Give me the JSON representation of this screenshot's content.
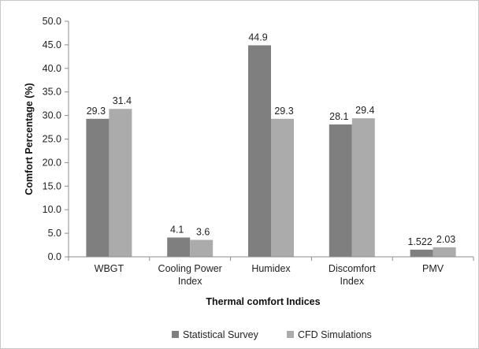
{
  "chart_data": {
    "type": "bar",
    "title": "",
    "xlabel": "Thermal comfort Indices",
    "ylabel": "Comfort Percentage (%)",
    "ylim": [
      0,
      50
    ],
    "ytick_step": 5,
    "ytick_labels": [
      "0.0",
      "5.0",
      "10.0",
      "15.0",
      "20.0",
      "25.0",
      "30.0",
      "35.0",
      "40.0",
      "45.0",
      "50.0"
    ],
    "grid": false,
    "legend_position": "bottom",
    "categories": [
      [
        "WBGT"
      ],
      [
        "Cooling Power",
        "Index"
      ],
      [
        "Humidex"
      ],
      [
        "Discomfort",
        "Index"
      ],
      [
        "PMV"
      ]
    ],
    "series": [
      {
        "name": "Statistical Survey",
        "color": "#7f7f7f",
        "values": [
          29.3,
          4.1,
          44.9,
          28.1,
          1.522
        ],
        "labels": [
          "29.3",
          "4.1",
          "44.9",
          "28.1",
          "1.522"
        ]
      },
      {
        "name": "CFD Simulations",
        "color": "#ababab",
        "values": [
          31.4,
          3.6,
          29.3,
          29.4,
          2.03
        ],
        "labels": [
          "31.4",
          "3.6",
          "29.3",
          "29.4",
          "2.03"
        ]
      }
    ]
  }
}
